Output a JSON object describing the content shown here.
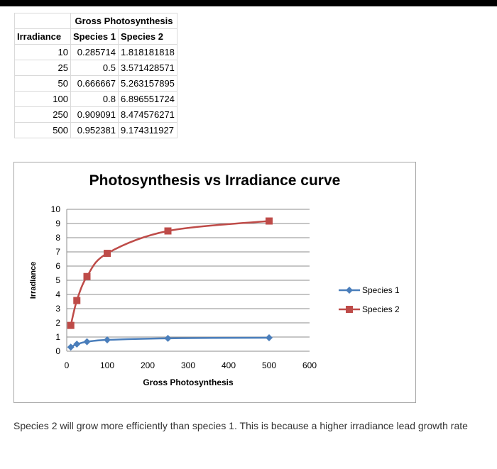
{
  "table": {
    "group_header": "Gross Photosynthesis",
    "columns": [
      "Irradiance",
      "Species 1",
      "Species 2"
    ],
    "rows": [
      [
        "10",
        "0.285714",
        "1.818181818"
      ],
      [
        "25",
        "0.5",
        "3.571428571"
      ],
      [
        "50",
        "0.666667",
        "5.263157895"
      ],
      [
        "100",
        "0.8",
        "6.896551724"
      ],
      [
        "250",
        "0.909091",
        "8.474576271"
      ],
      [
        "500",
        "0.952381",
        "9.174311927"
      ]
    ]
  },
  "chart_data": {
    "type": "line",
    "title": "Photosynthesis vs Irradiance curve",
    "xlabel": "Gross Photosynthesis",
    "ylabel": "Irradiance",
    "xlim": [
      0,
      600
    ],
    "ylim": [
      0,
      10
    ],
    "xticks": [
      0,
      100,
      200,
      300,
      400,
      500,
      600
    ],
    "yticks": [
      0,
      1,
      2,
      3,
      4,
      5,
      6,
      7,
      8,
      9,
      10
    ],
    "grid": "horizontal",
    "legend_position": "right",
    "x": [
      10,
      25,
      50,
      100,
      250,
      500
    ],
    "series": [
      {
        "name": "Species 1",
        "color": "#4a7ebb",
        "marker": "diamond",
        "values": [
          0.285714,
          0.5,
          0.666667,
          0.8,
          0.909091,
          0.952381
        ]
      },
      {
        "name": "Species 2",
        "color": "#be4b48",
        "marker": "square",
        "values": [
          1.818181818,
          3.571428571,
          5.263157895,
          6.896551724,
          8.474576271,
          9.174311927
        ]
      }
    ]
  },
  "caption": "Species 2 will grow more efficiently than species 1. This is because a higher irradiance lead growth rate"
}
